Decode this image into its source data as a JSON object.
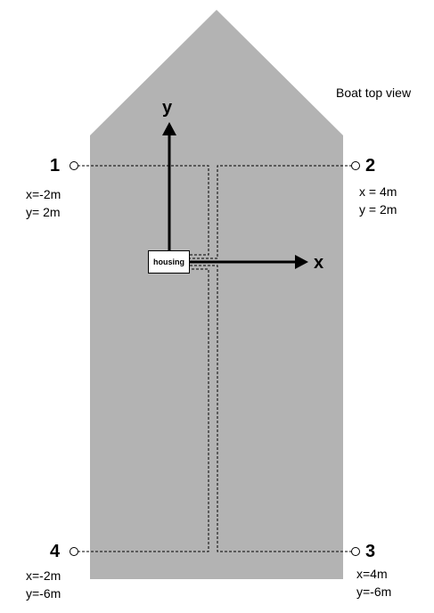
{
  "caption": "Boat top view",
  "axes": {
    "x": "x",
    "y": "y"
  },
  "housing": "housing",
  "points": [
    {
      "num": "1",
      "x": "x=-2m",
      "y": "y= 2m"
    },
    {
      "num": "2",
      "x": "x = 4m",
      "y": "y = 2m"
    },
    {
      "num": "3",
      "x": "x=4m",
      "y": "y=-6m"
    },
    {
      "num": "4",
      "x": "x=-2m",
      "y": "y=-6m"
    }
  ],
  "colors": {
    "hull": "#b3b3b3",
    "line": "#000000"
  }
}
